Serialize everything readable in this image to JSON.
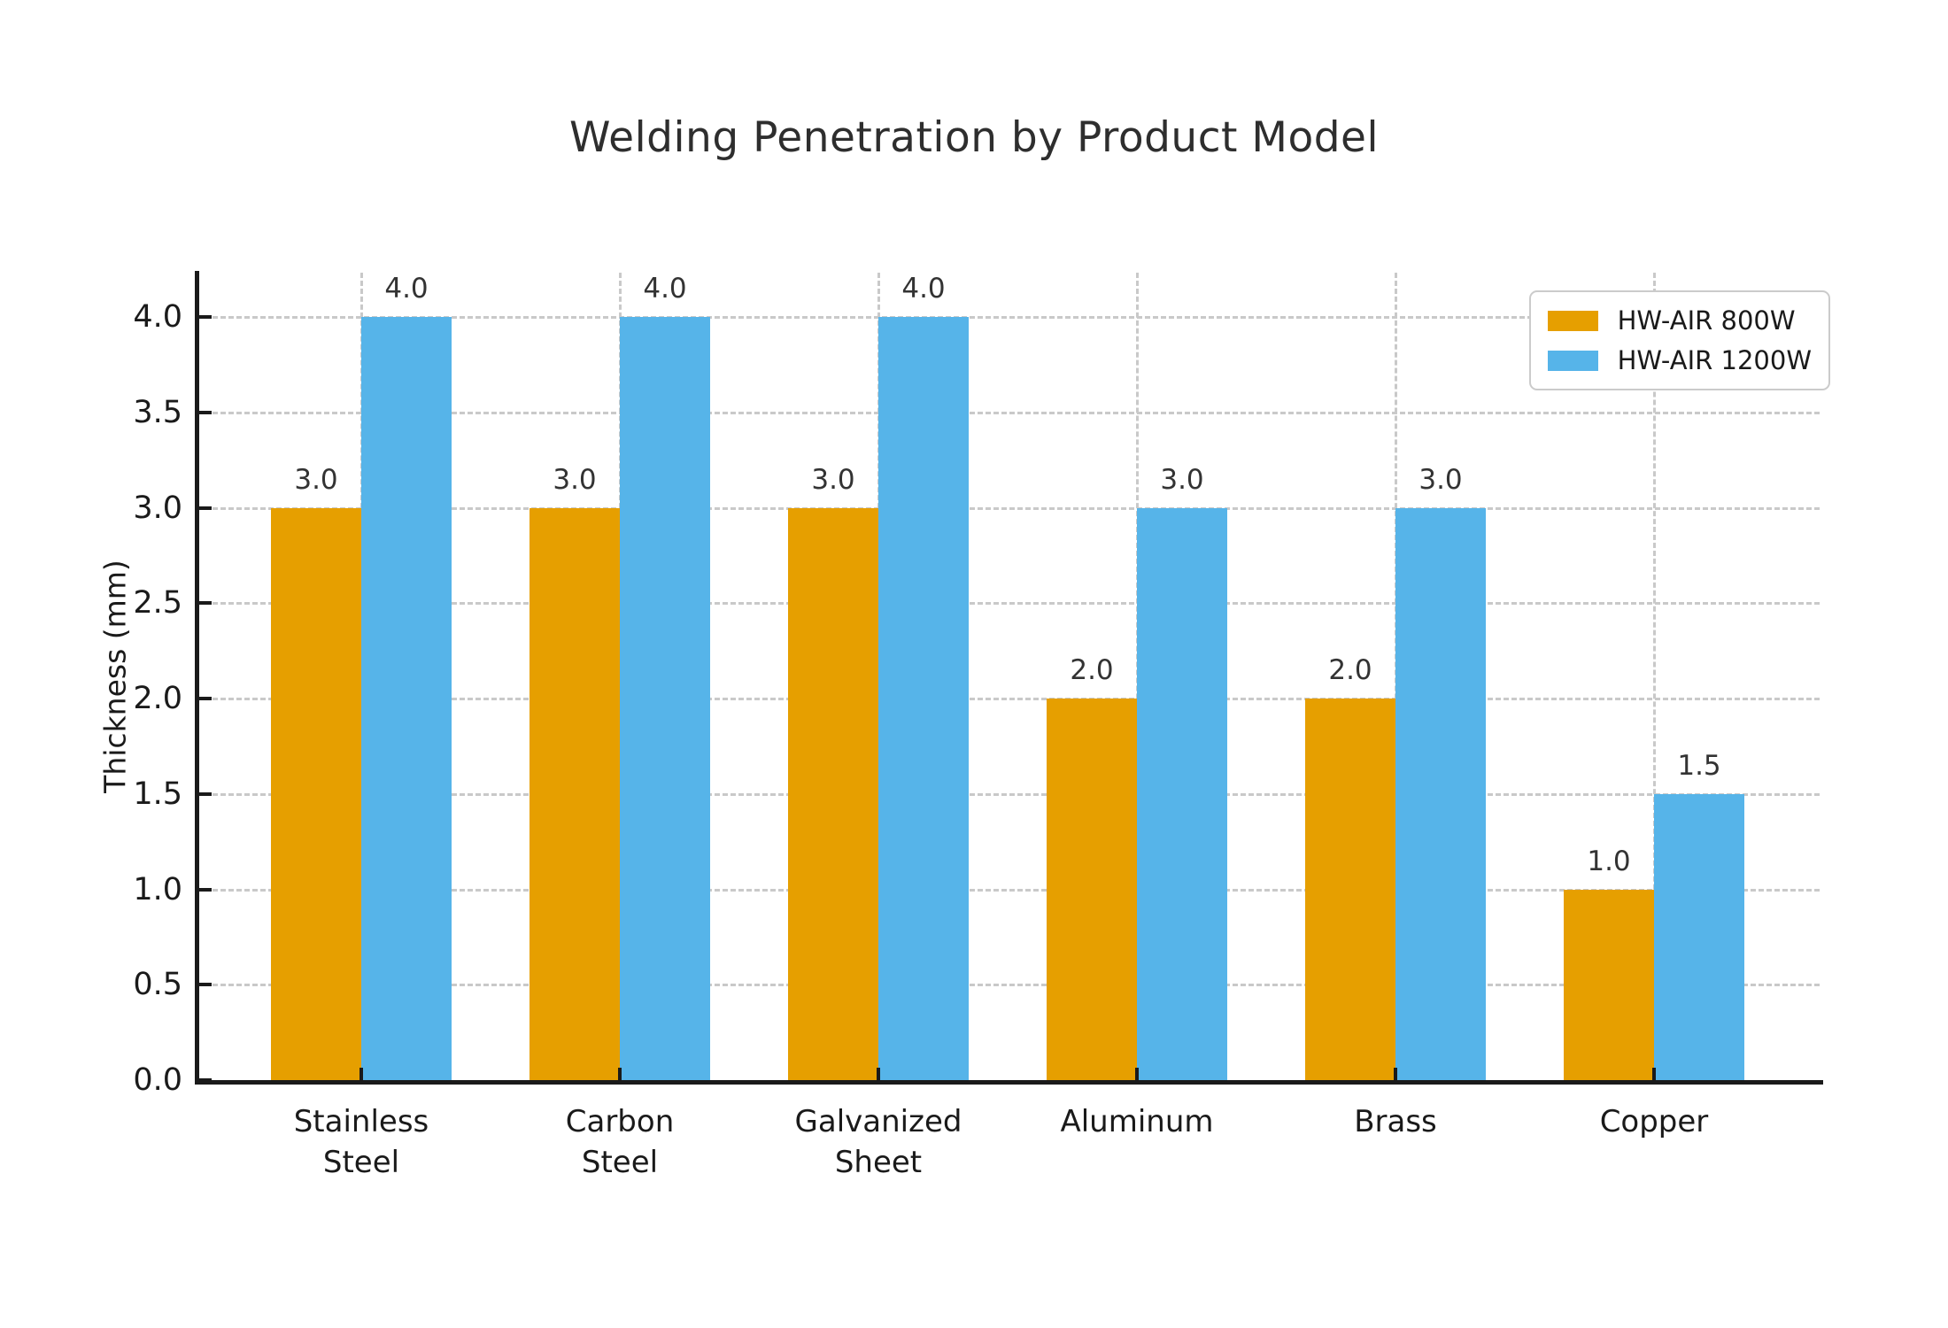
{
  "title": "Welding Penetration by Product Model",
  "chart_data": {
    "type": "bar",
    "title": "Welding Penetration by Product Model",
    "xlabel": "",
    "ylabel": "Thickness (mm)",
    "categories": [
      "Stainless Steel",
      "Carbon Steel",
      "Galvanized Sheet",
      "Aluminum",
      "Brass",
      "Copper"
    ],
    "category_label_lines": [
      [
        "Stainless",
        "Steel"
      ],
      [
        "Carbon",
        "Steel"
      ],
      [
        "Galvanized",
        "Sheet"
      ],
      [
        "Aluminum"
      ],
      [
        "Brass"
      ],
      [
        "Copper"
      ]
    ],
    "series": [
      {
        "name": "HW-AIR 800W",
        "color": "#E69F00",
        "values": [
          3.0,
          3.0,
          3.0,
          2.0,
          2.0,
          1.0
        ]
      },
      {
        "name": "HW-AIR 1200W",
        "color": "#56B4E9",
        "values": [
          4.0,
          4.0,
          4.0,
          3.0,
          3.0,
          1.5
        ]
      }
    ],
    "bar_value_labels": [
      [
        "3.0",
        "3.0",
        "3.0",
        "2.0",
        "2.0",
        "1.0"
      ],
      [
        "4.0",
        "4.0",
        "4.0",
        "3.0",
        "3.0",
        "1.5"
      ]
    ],
    "yticks": [
      0.0,
      0.5,
      1.0,
      1.5,
      2.0,
      2.5,
      3.0,
      3.5,
      4.0
    ],
    "ytick_labels": [
      "0.0",
      "0.5",
      "1.0",
      "1.5",
      "2.0",
      "2.5",
      "3.0",
      "3.5",
      "4.0"
    ],
    "ylim": [
      0,
      4.23
    ],
    "grid": true,
    "grid_style": "dashed",
    "legend_position": "upper right"
  },
  "legend": {
    "items": [
      {
        "label": "HW-AIR 800W",
        "color": "#E69F00"
      },
      {
        "label": "HW-AIR 1200W",
        "color": "#56B4E9"
      }
    ]
  },
  "colors": {
    "background": "#ffffff",
    "title_text": "#2e2e2e",
    "axis_text": "#1a1a1a",
    "spine": "#1a1a1a",
    "gridline": "#c9c9c9",
    "bar_orange": "#E69F00",
    "bar_blue": "#56B4E9",
    "legend_border": "#cbcbcb",
    "legend_bg": "#ffffff"
  }
}
